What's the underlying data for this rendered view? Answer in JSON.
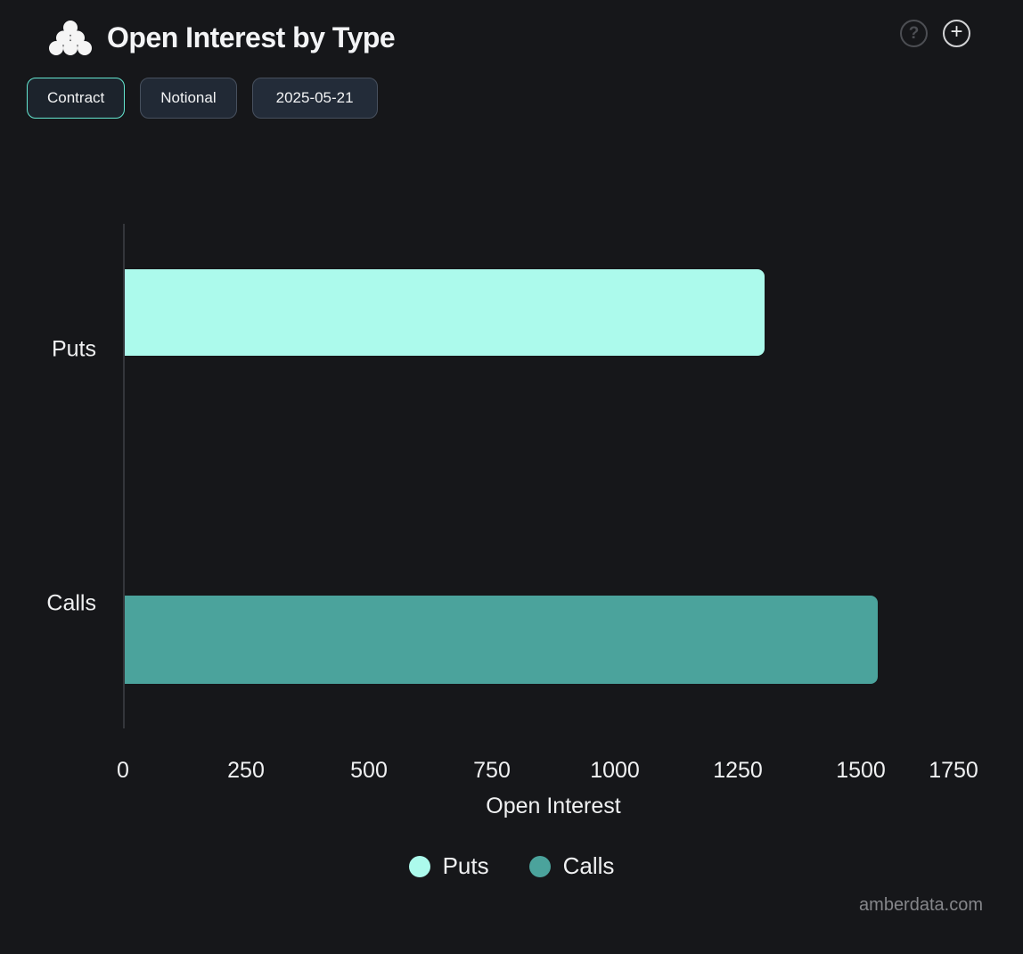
{
  "header": {
    "title": "Open Interest by Type",
    "icons": {
      "help": "?",
      "add": "+"
    }
  },
  "toolbar": {
    "buttons": [
      {
        "label": "Contract",
        "active": true
      },
      {
        "label": "Notional",
        "active": false
      },
      {
        "label": "2025-05-21",
        "active": false
      }
    ]
  },
  "chart_data": {
    "type": "bar",
    "orientation": "horizontal",
    "title": "Open Interest by Type",
    "xlabel": "Open Interest",
    "ylabel": "",
    "categories": [
      "Puts",
      "Calls"
    ],
    "series": [
      {
        "name": "Puts",
        "value": 1300,
        "color": "#acfaec"
      },
      {
        "name": "Calls",
        "value": 1530,
        "color": "#4ba39c"
      }
    ],
    "xlim": [
      0,
      1750
    ],
    "xticks": [
      0,
      250,
      500,
      750,
      1000,
      1250,
      1500,
      1750
    ],
    "grid": false,
    "legend": {
      "position": "bottom",
      "entries": [
        "Puts",
        "Calls"
      ]
    }
  },
  "watermark": "amberdata.com",
  "colors": {
    "background": "#16171a",
    "accent": "#64e6cf",
    "puts_bar": "#acfaec",
    "calls_bar": "#4ba39c",
    "axis_line": "#34363b",
    "text": "#f0f1f2",
    "muted_text": "#85868a"
  }
}
